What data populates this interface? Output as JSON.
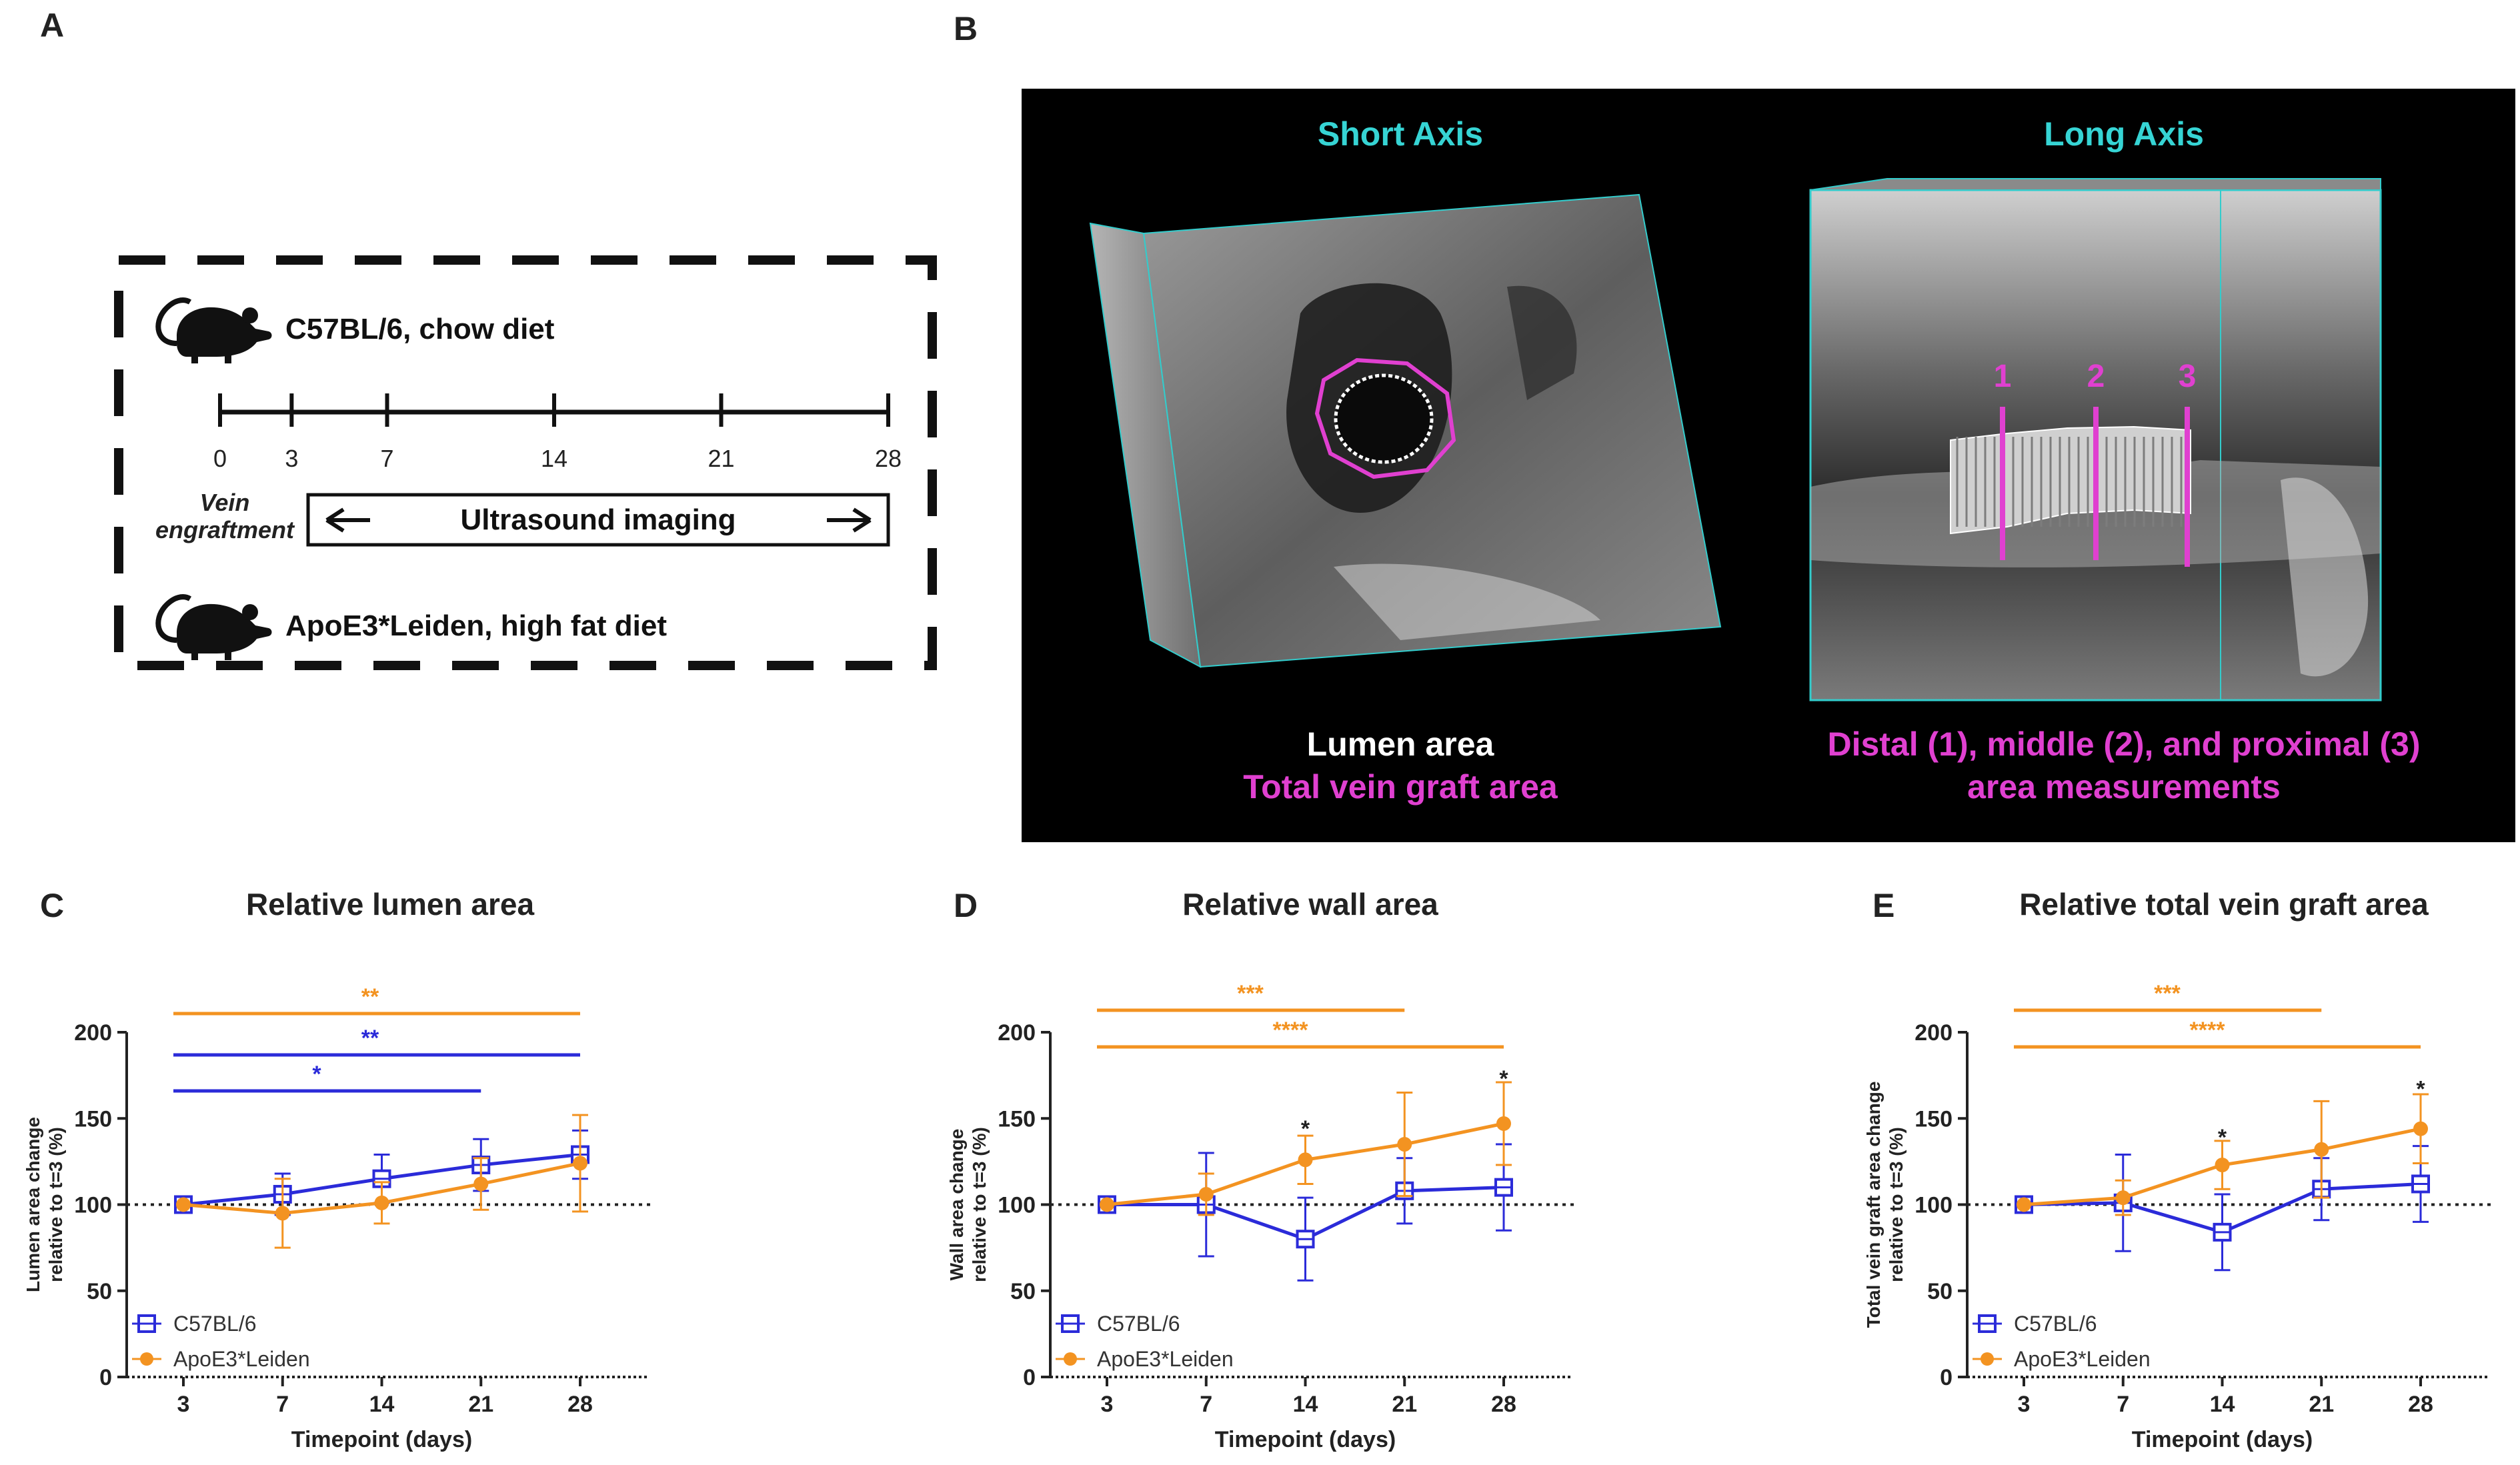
{
  "panel_labels": {
    "a": "A",
    "b": "B",
    "c": "C",
    "d": "D",
    "e": "E"
  },
  "colors": {
    "c57": "#2b2bd9",
    "apoe": "#f39321",
    "magenta": "#e040d0",
    "cyan": "#36d4d4"
  },
  "panel_a": {
    "top_mouse": "C57BL/6, chow diet",
    "bottom_mouse": "ApoE3*Leiden, high fat diet",
    "ticks": [
      "0",
      "3",
      "7",
      "14",
      "21",
      "28"
    ],
    "vein_line1": "Vein",
    "vein_line2": "engraftment",
    "imaging": "Ultrasound imaging",
    "mouse_icon": "mouse-icon"
  },
  "panel_b": {
    "short_axis": "Short Axis",
    "long_axis": "Long Axis",
    "lumen_area": "Lumen area",
    "total_area": "Total vein graft area",
    "measure_line1": "Distal (1), middle (2), and proximal (3)",
    "measure_line2": "area measurements",
    "markers": [
      "1",
      "2",
      "3"
    ]
  },
  "legend": {
    "c57": "C57BL/6",
    "apoe": "ApoE3*Leiden"
  },
  "chart_data": [
    {
      "type": "line",
      "title": "Relative lumen area",
      "xlabel": "Timepoint (days)",
      "ylabel_line1": "Lumen area change",
      "ylabel_line2": "relative to t=3  (%)",
      "x": [
        3,
        7,
        14,
        21,
        28
      ],
      "ylim": [
        0,
        200
      ],
      "yticks": [
        0,
        50,
        100,
        150,
        200
      ],
      "reference_line": 100,
      "series": [
        {
          "name": "C57BL/6",
          "values": [
            100,
            106,
            115,
            123,
            129
          ],
          "err": [
            0,
            12,
            14,
            15,
            14
          ]
        },
        {
          "name": "ApoE3*Leiden",
          "values": [
            100,
            95,
            101,
            112,
            124
          ],
          "err": [
            0,
            20,
            12,
            15,
            28
          ]
        }
      ],
      "brackets": [
        {
          "from": 3,
          "to": 28,
          "label": "**",
          "color": "apoe"
        },
        {
          "from": 3,
          "to": 28,
          "label": "**",
          "color": "c57"
        },
        {
          "from": 3,
          "to": 21,
          "label": "*",
          "color": "c57"
        }
      ],
      "point_stars": []
    },
    {
      "type": "line",
      "title": "Relative wall area",
      "xlabel": "Timepoint (days)",
      "ylabel_line1": "Wall area change",
      "ylabel_line2": "relative to t=3 (%)",
      "x": [
        3,
        7,
        14,
        21,
        28
      ],
      "ylim": [
        0,
        200
      ],
      "yticks": [
        0,
        50,
        100,
        150,
        200
      ],
      "reference_line": 100,
      "series": [
        {
          "name": "C57BL/6",
          "values": [
            100,
            100,
            80,
            108,
            110
          ],
          "err": [
            0,
            30,
            24,
            19,
            25
          ]
        },
        {
          "name": "ApoE3*Leiden",
          "values": [
            100,
            106,
            126,
            135,
            147
          ],
          "err": [
            0,
            12,
            14,
            30,
            24
          ]
        }
      ],
      "brackets": [
        {
          "from": 3,
          "to": 21,
          "label": "***",
          "color": "apoe"
        },
        {
          "from": 3,
          "to": 28,
          "label": "****",
          "color": "apoe"
        }
      ],
      "point_stars": [
        {
          "x": 14,
          "y": 145,
          "label": "*"
        },
        {
          "x": 28,
          "y": 174,
          "label": "*"
        }
      ]
    },
    {
      "type": "line",
      "title": "Relative total vein graft area",
      "xlabel": "Timepoint (days)",
      "ylabel_line1": "Total vein graft area change",
      "ylabel_line2": "relative to t=3 (%)",
      "x": [
        3,
        7,
        14,
        21,
        28
      ],
      "ylim": [
        0,
        200
      ],
      "yticks": [
        0,
        50,
        100,
        150,
        200
      ],
      "reference_line": 100,
      "series": [
        {
          "name": "C57BL/6",
          "values": [
            100,
            101,
            84,
            109,
            112
          ],
          "err": [
            0,
            28,
            22,
            18,
            22
          ]
        },
        {
          "name": "ApoE3*Leiden",
          "values": [
            100,
            104,
            123,
            132,
            144
          ],
          "err": [
            0,
            10,
            14,
            28,
            20
          ]
        }
      ],
      "brackets": [
        {
          "from": 3,
          "to": 21,
          "label": "***",
          "color": "apoe"
        },
        {
          "from": 3,
          "to": 28,
          "label": "****",
          "color": "apoe"
        }
      ],
      "point_stars": [
        {
          "x": 14,
          "y": 140,
          "label": "*"
        },
        {
          "x": 28,
          "y": 168,
          "label": "*"
        }
      ]
    }
  ]
}
